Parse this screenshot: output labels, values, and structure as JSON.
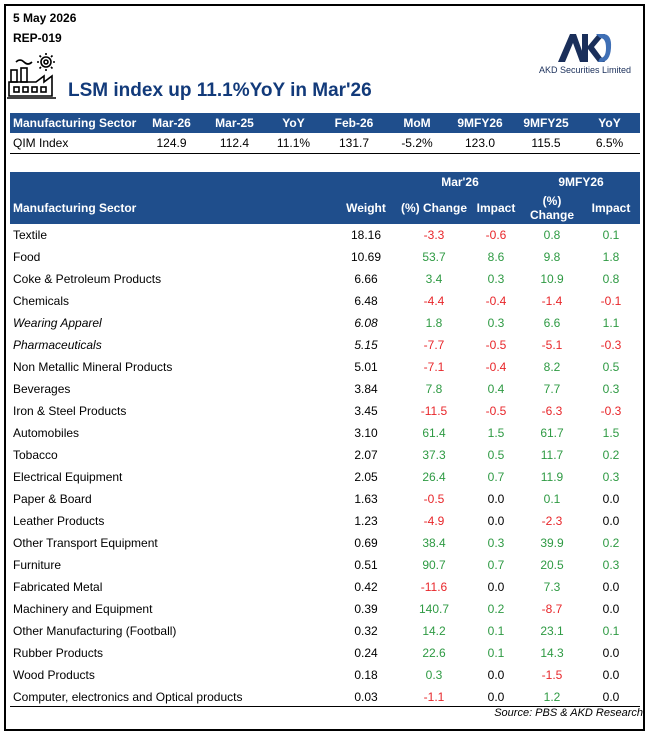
{
  "date": "5 May 2026",
  "ref": "REP-019",
  "brand": {
    "name": "AKD Securities Limited",
    "mark": "AKD"
  },
  "title": "LSM index up 11.1%YoY in Mar'26",
  "qim_table": {
    "headers": [
      "Manufacturing Sector",
      "Mar-26",
      "Mar-25",
      "YoY",
      "Feb-26",
      "MoM",
      "9MFY26",
      "9MFY25",
      "YoY"
    ],
    "row": [
      "QIM Index",
      "124.9",
      "112.4",
      "11.1%",
      "131.7",
      "-5.2%",
      "123.0",
      "115.5",
      "6.5%"
    ]
  },
  "main_table": {
    "band": {
      "mar": "Mar'26",
      "fy": "9MFY26"
    },
    "headers": {
      "sector": "Manufacturing Sector",
      "weight": "Weight",
      "mar_change": "(%) Change",
      "mar_impact": "Impact",
      "fy_change_1": "(%)",
      "fy_change_2": "Change",
      "fy_impact": "Impact"
    },
    "rows": [
      {
        "sector": "Textile",
        "weight": "18.16",
        "mar_chg": "-3.3",
        "mar_imp": "-0.6",
        "fy_chg": "0.8",
        "fy_imp": "0.1",
        "italic": false
      },
      {
        "sector": "Food",
        "weight": "10.69",
        "mar_chg": "53.7",
        "mar_imp": "8.6",
        "fy_chg": "9.8",
        "fy_imp": "1.8",
        "italic": false
      },
      {
        "sector": "Coke & Petroleum Products",
        "weight": "6.66",
        "mar_chg": "3.4",
        "mar_imp": "0.3",
        "fy_chg": "10.9",
        "fy_imp": "0.8",
        "italic": false
      },
      {
        "sector": "Chemicals",
        "weight": "6.48",
        "mar_chg": "-4.4",
        "mar_imp": "-0.4",
        "fy_chg": "-1.4",
        "fy_imp": "-0.1",
        "italic": false
      },
      {
        "sector": "Wearing Apparel",
        "weight": "6.08",
        "mar_chg": "1.8",
        "mar_imp": "0.3",
        "fy_chg": "6.6",
        "fy_imp": "1.1",
        "italic": true
      },
      {
        "sector": "Pharmaceuticals",
        "weight": "5.15",
        "mar_chg": "-7.7",
        "mar_imp": "-0.5",
        "fy_chg": "-5.1",
        "fy_imp": "-0.3",
        "italic": true
      },
      {
        "sector": "Non Metallic Mineral Products",
        "weight": "5.01",
        "mar_chg": "-7.1",
        "mar_imp": "-0.4",
        "fy_chg": "8.2",
        "fy_imp": "0.5",
        "italic": false
      },
      {
        "sector": "Beverages",
        "weight": "3.84",
        "mar_chg": "7.8",
        "mar_imp": "0.4",
        "fy_chg": "7.7",
        "fy_imp": "0.3",
        "italic": false
      },
      {
        "sector": "Iron & Steel Products",
        "weight": "3.45",
        "mar_chg": "-11.5",
        "mar_imp": "-0.5",
        "fy_chg": "-6.3",
        "fy_imp": "-0.3",
        "italic": false
      },
      {
        "sector": "Automobiles",
        "weight": "3.10",
        "mar_chg": "61.4",
        "mar_imp": "1.5",
        "fy_chg": "61.7",
        "fy_imp": "1.5",
        "italic": false
      },
      {
        "sector": "Tobacco",
        "weight": "2.07",
        "mar_chg": "37.3",
        "mar_imp": "0.5",
        "fy_chg": "11.7",
        "fy_imp": "0.2",
        "italic": false
      },
      {
        "sector": "Electrical Equipment",
        "weight": "2.05",
        "mar_chg": "26.4",
        "mar_imp": "0.7",
        "fy_chg": "11.9",
        "fy_imp": "0.3",
        "italic": false
      },
      {
        "sector": "Paper & Board",
        "weight": "1.63",
        "mar_chg": "-0.5",
        "mar_imp": "0.0",
        "fy_chg": "0.1",
        "fy_imp": "0.0",
        "italic": false
      },
      {
        "sector": "Leather Products",
        "weight": "1.23",
        "mar_chg": "-4.9",
        "mar_imp": "0.0",
        "fy_chg": "-2.3",
        "fy_imp": "0.0",
        "italic": false
      },
      {
        "sector": "Other Transport Equipment",
        "weight": "0.69",
        "mar_chg": "38.4",
        "mar_imp": "0.3",
        "fy_chg": "39.9",
        "fy_imp": "0.2",
        "italic": false
      },
      {
        "sector": "Furniture",
        "weight": "0.51",
        "mar_chg": "90.7",
        "mar_imp": "0.7",
        "fy_chg": "20.5",
        "fy_imp": "0.3",
        "italic": false
      },
      {
        "sector": "Fabricated Metal",
        "weight": "0.42",
        "mar_chg": "-11.6",
        "mar_imp": "0.0",
        "fy_chg": "7.3",
        "fy_imp": "0.0",
        "italic": false
      },
      {
        "sector": "Machinery and Equipment",
        "weight": "0.39",
        "mar_chg": "140.7",
        "mar_imp": "0.2",
        "fy_chg": "-8.7",
        "fy_imp": "0.0",
        "italic": false
      },
      {
        "sector": "Other Manufacturing (Football)",
        "weight": "0.32",
        "mar_chg": "14.2",
        "mar_imp": "0.1",
        "fy_chg": "23.1",
        "fy_imp": "0.1",
        "italic": false
      },
      {
        "sector": "Rubber Products",
        "weight": "0.24",
        "mar_chg": "22.6",
        "mar_imp": "0.1",
        "fy_chg": "14.3",
        "fy_imp": "0.0",
        "italic": false
      },
      {
        "sector": "Wood Products",
        "weight": "0.18",
        "mar_chg": "0.3",
        "mar_imp": "0.0",
        "fy_chg": "-1.5",
        "fy_imp": "0.0",
        "italic": false
      },
      {
        "sector": "Computer, electronics and Optical products",
        "weight": "0.03",
        "mar_chg": "-1.1",
        "mar_imp": "0.0",
        "fy_chg": "1.2",
        "fy_imp": "0.0",
        "italic": false
      }
    ]
  },
  "source": "Source:  PBS & AKD Research",
  "colors": {
    "header_bg": "#1f4e8c",
    "title": "#123a7a",
    "negative": "#e8262a",
    "positive": "#2e9a43"
  },
  "icons": [
    "factory-icon",
    "akd-logo"
  ]
}
